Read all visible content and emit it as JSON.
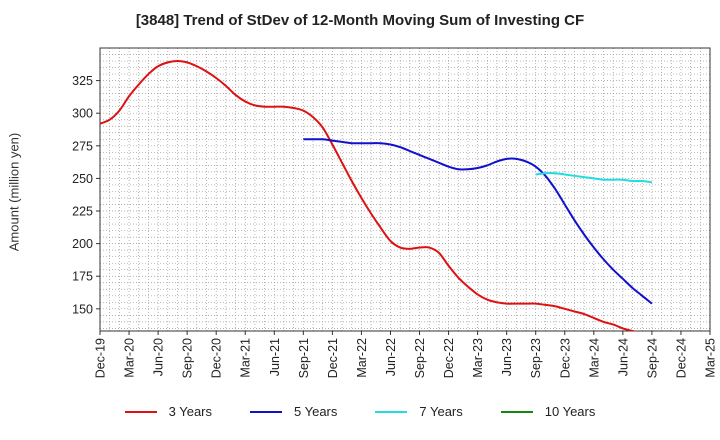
{
  "chart_data": {
    "type": "line",
    "title": "[3848]  Trend of StDev of 12-Month Moving Sum of Investing CF",
    "ylabel": "Amount (million yen)",
    "xlabel": "",
    "ylim": [
      133,
      350
    ],
    "yticks": [
      150,
      175,
      200,
      225,
      250,
      275,
      300,
      325
    ],
    "x_tick_labels": [
      "Dec-19",
      "Mar-20",
      "Jun-20",
      "Sep-20",
      "Dec-20",
      "Mar-21",
      "Jun-21",
      "Sep-21",
      "Dec-21",
      "Mar-22",
      "Jun-22",
      "Sep-22",
      "Dec-22",
      "Mar-23",
      "Jun-23",
      "Sep-23",
      "Dec-23",
      "Mar-24",
      "Jun-24",
      "Sep-24",
      "Dec-24",
      "Mar-25"
    ],
    "grid": true,
    "legend_position": "bottom",
    "series": [
      {
        "name": "3 Years",
        "color": "#dd1111",
        "x": [
          "Dec-19",
          "Jan-20",
          "Feb-20",
          "Mar-20",
          "Apr-20",
          "May-20",
          "Jun-20",
          "Jul-20",
          "Aug-20",
          "Sep-20",
          "Oct-20",
          "Nov-20",
          "Dec-20",
          "Jan-21",
          "Feb-21",
          "Mar-21",
          "Apr-21",
          "May-21",
          "Jun-21",
          "Jul-21",
          "Aug-21",
          "Sep-21",
          "Oct-21",
          "Nov-21",
          "Dec-21",
          "Jan-22",
          "Feb-22",
          "Mar-22",
          "Apr-22",
          "May-22",
          "Jun-22",
          "Jul-22",
          "Aug-22",
          "Sep-22",
          "Oct-22",
          "Nov-22",
          "Dec-22",
          "Jan-23",
          "Feb-23",
          "Mar-23",
          "Apr-23",
          "May-23",
          "Jun-23",
          "Jul-23",
          "Aug-23",
          "Sep-23",
          "Oct-23",
          "Nov-23",
          "Dec-23",
          "Jan-24",
          "Feb-24",
          "Mar-24",
          "Apr-24",
          "May-24",
          "Jun-24",
          "Jul-24",
          "Aug-24",
          "Sep-24"
        ],
        "values": [
          292,
          295,
          302,
          313,
          322,
          330,
          336,
          339,
          340,
          339,
          336,
          332,
          327,
          321,
          314,
          309,
          306,
          305,
          305,
          305,
          304,
          302,
          297,
          289,
          276,
          262,
          248,
          235,
          223,
          212,
          202,
          197,
          196,
          197,
          197,
          193,
          183,
          174,
          167,
          161,
          157,
          155,
          154,
          154,
          154,
          154,
          153,
          152,
          150,
          148,
          146,
          143,
          140,
          138,
          135,
          133,
          131,
          129
        ]
      },
      {
        "name": "5 Years",
        "color": "#1111cc",
        "x": [
          "Sep-21",
          "Oct-21",
          "Nov-21",
          "Dec-21",
          "Jan-22",
          "Feb-22",
          "Mar-22",
          "Apr-22",
          "May-22",
          "Jun-22",
          "Jul-22",
          "Aug-22",
          "Sep-22",
          "Oct-22",
          "Nov-22",
          "Dec-22",
          "Jan-23",
          "Feb-23",
          "Mar-23",
          "Apr-23",
          "May-23",
          "Jun-23",
          "Jul-23",
          "Aug-23",
          "Sep-23",
          "Oct-23",
          "Nov-23",
          "Dec-23",
          "Jan-24",
          "Feb-24",
          "Mar-24",
          "Apr-24",
          "May-24",
          "Jun-24",
          "Jul-24",
          "Aug-24",
          "Sep-24"
        ],
        "values": [
          280,
          280,
          280,
          279,
          278,
          277,
          277,
          277,
          277,
          276,
          274,
          271,
          268,
          265,
          262,
          259,
          257,
          257,
          258,
          260,
          263,
          265,
          265,
          263,
          259,
          252,
          242,
          230,
          218,
          207,
          197,
          188,
          180,
          173,
          166,
          160,
          154
        ]
      },
      {
        "name": "7 Years",
        "color": "#22dddd",
        "x": [
          "Sep-23",
          "Oct-23",
          "Nov-23",
          "Dec-23",
          "Jan-24",
          "Feb-24",
          "Mar-24",
          "Apr-24",
          "May-24",
          "Jun-24",
          "Jul-24",
          "Aug-24",
          "Sep-24"
        ],
        "values": [
          253,
          254,
          254,
          253,
          252,
          251,
          250,
          249,
          249,
          249,
          248,
          248,
          247
        ]
      },
      {
        "name": "10 Years",
        "color": "#118811",
        "x": [],
        "values": []
      }
    ]
  }
}
